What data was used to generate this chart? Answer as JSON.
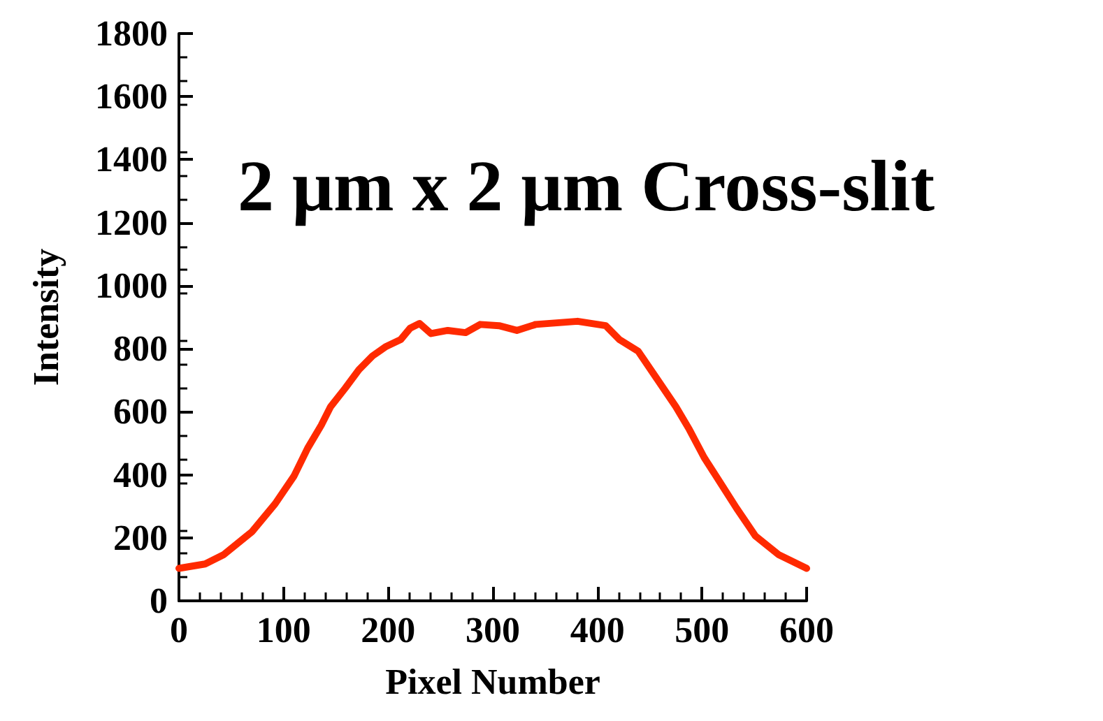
{
  "chart_data": {
    "type": "line",
    "title": "2 μm x 2 μm Cross-slit",
    "xlabel": "Pixel Number",
    "ylabel": "Intensity",
    "x": [
      0,
      25,
      43,
      70,
      92,
      110,
      123,
      136,
      145,
      159,
      172,
      185,
      198,
      212,
      221,
      230,
      241,
      257,
      274,
      288,
      306,
      323,
      341,
      381,
      408,
      421,
      439,
      457,
      475,
      488,
      502,
      519,
      533,
      551,
      573,
      600
    ],
    "series": [
      {
        "color": "#ff2a00",
        "values": [
          103,
          117,
          147,
          220,
          308,
          396,
          484,
          557,
          616,
          675,
          733,
          777,
          807,
          829,
          865,
          880,
          848,
          858,
          851,
          877,
          873,
          858,
          877,
          887,
          873,
          829,
          792,
          704,
          616,
          543,
          455,
          367,
          294,
          206,
          147,
          103
        ]
      }
    ],
    "xlim": [
      0,
      600
    ],
    "xticks": [
      0,
      100,
      200,
      300,
      400,
      500,
      600
    ],
    "ylim": [
      0,
      1800
    ],
    "yticks": [
      0,
      200,
      400,
      600,
      800,
      1000,
      1200,
      1400,
      1600,
      1800
    ],
    "grid": false,
    "marker": "none",
    "line_style": "solid"
  }
}
